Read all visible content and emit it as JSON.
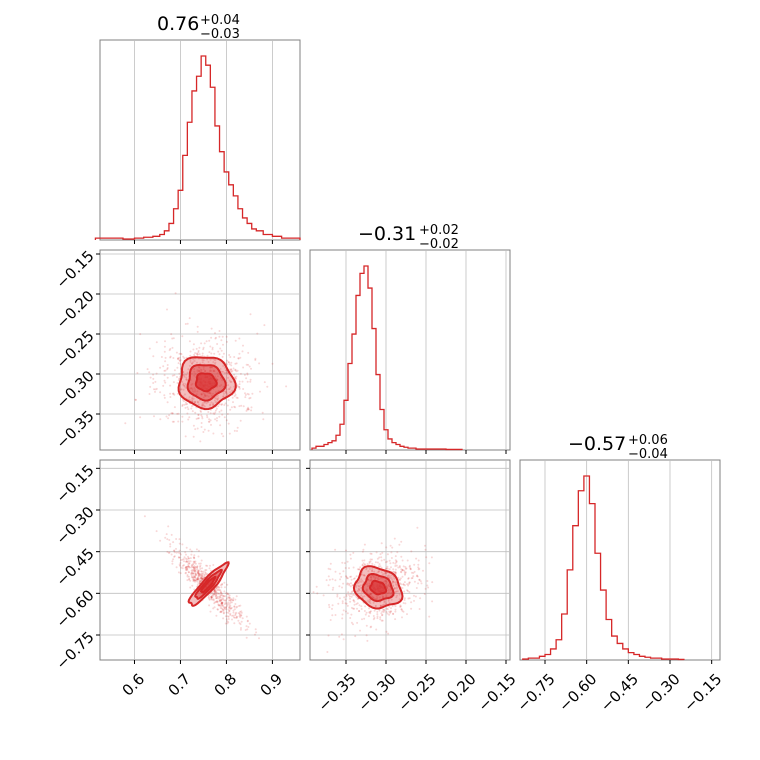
{
  "chart_data": {
    "type": "corner",
    "color": "#d62728",
    "grid": true,
    "titles": [
      {
        "main": "0.76",
        "upper": "+0.04",
        "lower": "−0.03"
      },
      {
        "main": "−0.31",
        "upper": "+0.02",
        "lower": "−0.02"
      },
      {
        "main": "−0.57",
        "upper": "+0.06",
        "lower": "−0.04"
      }
    ],
    "ticks": {
      "p1_x": [
        "0.6",
        "0.7",
        "0.8",
        "0.9"
      ],
      "p2_x": [
        "−0.35",
        "−0.30",
        "−0.25",
        "−0.20",
        "−0.15"
      ],
      "p3_x": [
        "−0.75",
        "−0.60",
        "−0.45",
        "−0.30",
        "−0.15"
      ],
      "p2_y": [
        "−0.15",
        "−0.20",
        "−0.25",
        "−0.30",
        "−0.35"
      ],
      "p3_y": [
        "−0.15",
        "−0.30",
        "−0.45",
        "−0.60",
        "−0.75"
      ]
    },
    "params": [
      {
        "median": 0.76,
        "plus": 0.04,
        "minus": 0.03,
        "range": [
          0.525,
          0.96
        ]
      },
      {
        "median": -0.31,
        "plus": 0.02,
        "minus": 0.02,
        "range": [
          -0.395,
          -0.145
        ]
      },
      {
        "median": -0.57,
        "plus": 0.06,
        "minus": 0.04,
        "range": [
          -0.84,
          -0.12
        ]
      }
    ],
    "hist_p1": {
      "x": [
        0.53,
        0.56,
        0.59,
        0.61,
        0.63,
        0.65,
        0.66,
        0.67,
        0.68,
        0.69,
        0.7,
        0.71,
        0.72,
        0.73,
        0.74,
        0.75,
        0.76,
        0.77,
        0.78,
        0.79,
        0.8,
        0.81,
        0.82,
        0.83,
        0.84,
        0.85,
        0.86,
        0.87,
        0.89,
        0.91,
        0.93,
        0.95
      ],
      "y": [
        0.01,
        0.01,
        0.005,
        0.01,
        0.015,
        0.02,
        0.03,
        0.05,
        0.09,
        0.17,
        0.27,
        0.46,
        0.64,
        0.81,
        0.89,
        1.0,
        0.95,
        0.83,
        0.62,
        0.48,
        0.37,
        0.3,
        0.24,
        0.17,
        0.12,
        0.09,
        0.06,
        0.05,
        0.03,
        0.02,
        0.01,
        0.01
      ]
    },
    "hist_p2": {
      "x": [
        -0.39,
        -0.385,
        -0.38,
        -0.375,
        -0.37,
        -0.365,
        -0.36,
        -0.355,
        -0.35,
        -0.345,
        -0.34,
        -0.335,
        -0.33,
        -0.325,
        -0.32,
        -0.315,
        -0.31,
        -0.305,
        -0.3,
        -0.295,
        -0.29,
        -0.285,
        -0.28,
        -0.275,
        -0.27,
        -0.265,
        -0.26,
        -0.25,
        -0.24,
        -0.23,
        -0.22,
        -0.21
      ],
      "y": [
        0.01,
        0.02,
        0.02,
        0.03,
        0.04,
        0.05,
        0.08,
        0.14,
        0.27,
        0.47,
        0.63,
        0.84,
        0.96,
        1.0,
        0.88,
        0.66,
        0.41,
        0.22,
        0.11,
        0.06,
        0.04,
        0.03,
        0.02,
        0.015,
        0.01,
        0.01,
        0.005,
        0.005,
        0.005,
        0.005,
        0.003,
        0.003
      ]
    },
    "hist_p3": {
      "x": [
        -0.82,
        -0.8,
        -0.78,
        -0.76,
        -0.74,
        -0.72,
        -0.7,
        -0.68,
        -0.66,
        -0.64,
        -0.62,
        -0.6,
        -0.58,
        -0.56,
        -0.54,
        -0.52,
        -0.5,
        -0.48,
        -0.46,
        -0.44,
        -0.42,
        -0.4,
        -0.38,
        -0.36,
        -0.34,
        -0.32,
        -0.3,
        -0.28,
        -0.26
      ],
      "y": [
        0.005,
        0.01,
        0.01,
        0.02,
        0.03,
        0.06,
        0.11,
        0.25,
        0.49,
        0.73,
        0.92,
        1.0,
        0.85,
        0.58,
        0.38,
        0.22,
        0.13,
        0.09,
        0.06,
        0.04,
        0.03,
        0.02,
        0.015,
        0.01,
        0.01,
        0.005,
        0.005,
        0.005,
        0.003
      ]
    },
    "contours_p1_p2": {
      "center": [
        0.755,
        -0.31
      ],
      "levels": [
        {
          "rx": 0.06,
          "ry": 0.032,
          "rot": -10
        },
        {
          "rx": 0.04,
          "ry": 0.022,
          "rot": -10
        },
        {
          "rx": 0.022,
          "ry": 0.011,
          "rot": -10
        }
      ]
    },
    "contours_p1_p3": {
      "center": [
        0.76,
        -0.57
      ],
      "levels": [
        {
          "rx": 0.06,
          "ry": 0.022,
          "rot": 48
        },
        {
          "rx": 0.04,
          "ry": 0.014,
          "rot": 48
        },
        {
          "rx": 0.022,
          "ry": 0.007,
          "rot": 48
        }
      ]
    },
    "contours_p2_p3": {
      "center": [
        -0.31,
        -0.58
      ],
      "levels": [
        {
          "rx": 0.03,
          "ry": 0.07,
          "rot": -25
        },
        {
          "rx": 0.019,
          "ry": 0.045,
          "rot": -25
        },
        {
          "rx": 0.01,
          "ry": 0.022,
          "rot": -25
        }
      ]
    }
  }
}
